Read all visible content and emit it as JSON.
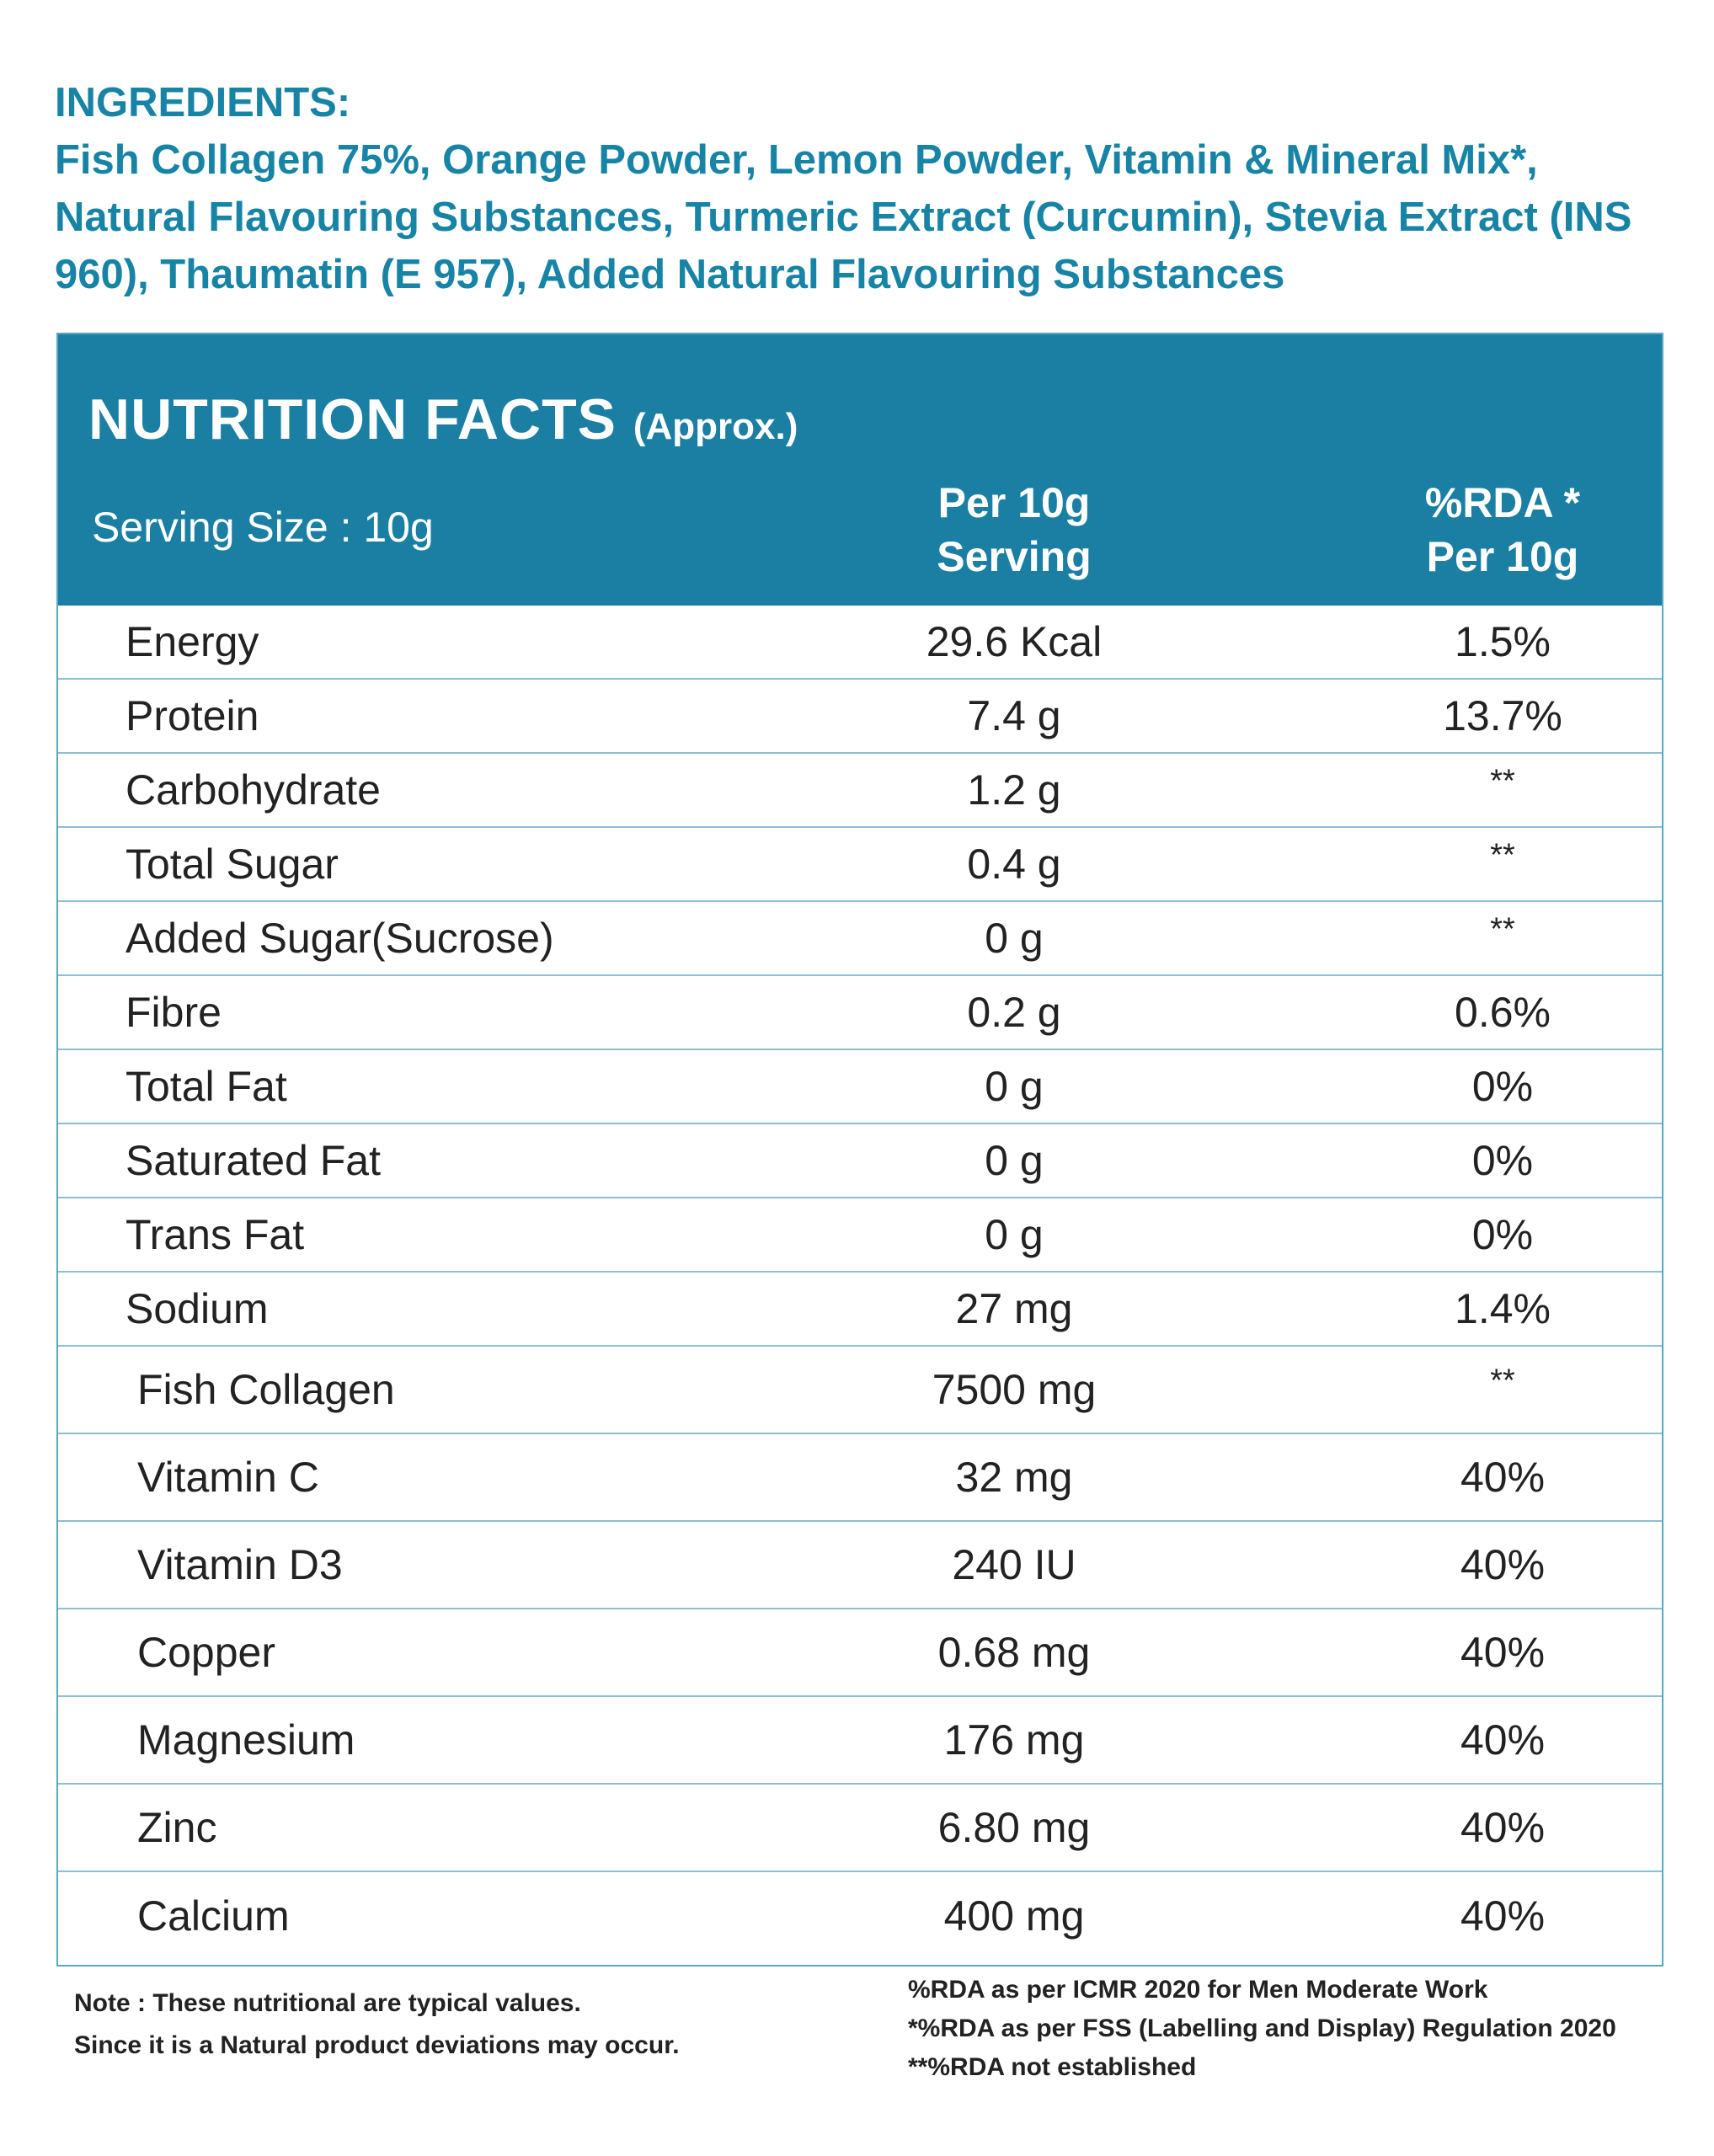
{
  "ingredients": {
    "heading": "INGREDIENTS:",
    "text": "Fish Collagen 75%, Orange Powder, Lemon Powder, Vitamin & Mineral Mix*, Natural Flavouring Substances, Turmeric Extract (Curcumin), Stevia Extract (INS 960), Thaumatin (E 957), Added Natural Flavouring Substances"
  },
  "nutrition": {
    "title": "NUTRITION FACTS",
    "title_suffix": "(Approx.)",
    "serving_size": "Serving Size : 10g",
    "col_per_line1": "Per 10g",
    "col_per_line2": "Serving",
    "col_rda_line1": "%RDA *",
    "col_rda_line2": "Per 10g",
    "rows": [
      {
        "name": "Energy",
        "value": "29.6 Kcal",
        "rda": "1.5%"
      },
      {
        "name": "Protein",
        "value": "7.4 g",
        "rda": "13.7%"
      },
      {
        "name": "Carbohydrate",
        "value": "1.2 g",
        "rda": "**"
      },
      {
        "name": "Total Sugar",
        "value": "0.4 g",
        "rda": "**"
      },
      {
        "name": "Added Sugar(Sucrose)",
        "value": "0 g",
        "rda": "**"
      },
      {
        "name": "Fibre",
        "value": "0.2 g",
        "rda": "0.6%"
      },
      {
        "name": "Total Fat",
        "value": "0 g",
        "rda": "0%"
      },
      {
        "name": "Saturated Fat",
        "value": "0 g",
        "rda": "0%"
      },
      {
        "name": "Trans Fat",
        "value": "0 g",
        "rda": "0%"
      },
      {
        "name": "Sodium",
        "value": "27 mg",
        "rda": "1.4%"
      },
      {
        "name": "Fish Collagen",
        "value": "7500 mg",
        "rda": "**"
      },
      {
        "name": "Vitamin C",
        "value": "32 mg",
        "rda": "40%"
      },
      {
        "name": "Vitamin D3",
        "value": "240 IU",
        "rda": "40%"
      },
      {
        "name": "Copper",
        "value": "0.68 mg",
        "rda": "40%"
      },
      {
        "name": "Magnesium",
        "value": "176 mg",
        "rda": "40%"
      },
      {
        "name": "Zinc",
        "value": "6.80 mg",
        "rda": "40%"
      },
      {
        "name": "Calcium",
        "value": "400 mg",
        "rda": "40%"
      }
    ]
  },
  "notes": {
    "line1": "Note : These nutritional are typical values.",
    "line2": "Since it is a Natural product deviations may occur.",
    "rda1": "%RDA as per ICMR 2020 for Men Moderate Work",
    "rda2": "*%RDA as per FSS (Labelling and Display) Regulation 2020",
    "rda3": "**%RDA not established"
  },
  "colors": {
    "accent": "#1784a6",
    "header_bg": "#1b7fa3",
    "divider": "#8dbfd0"
  }
}
